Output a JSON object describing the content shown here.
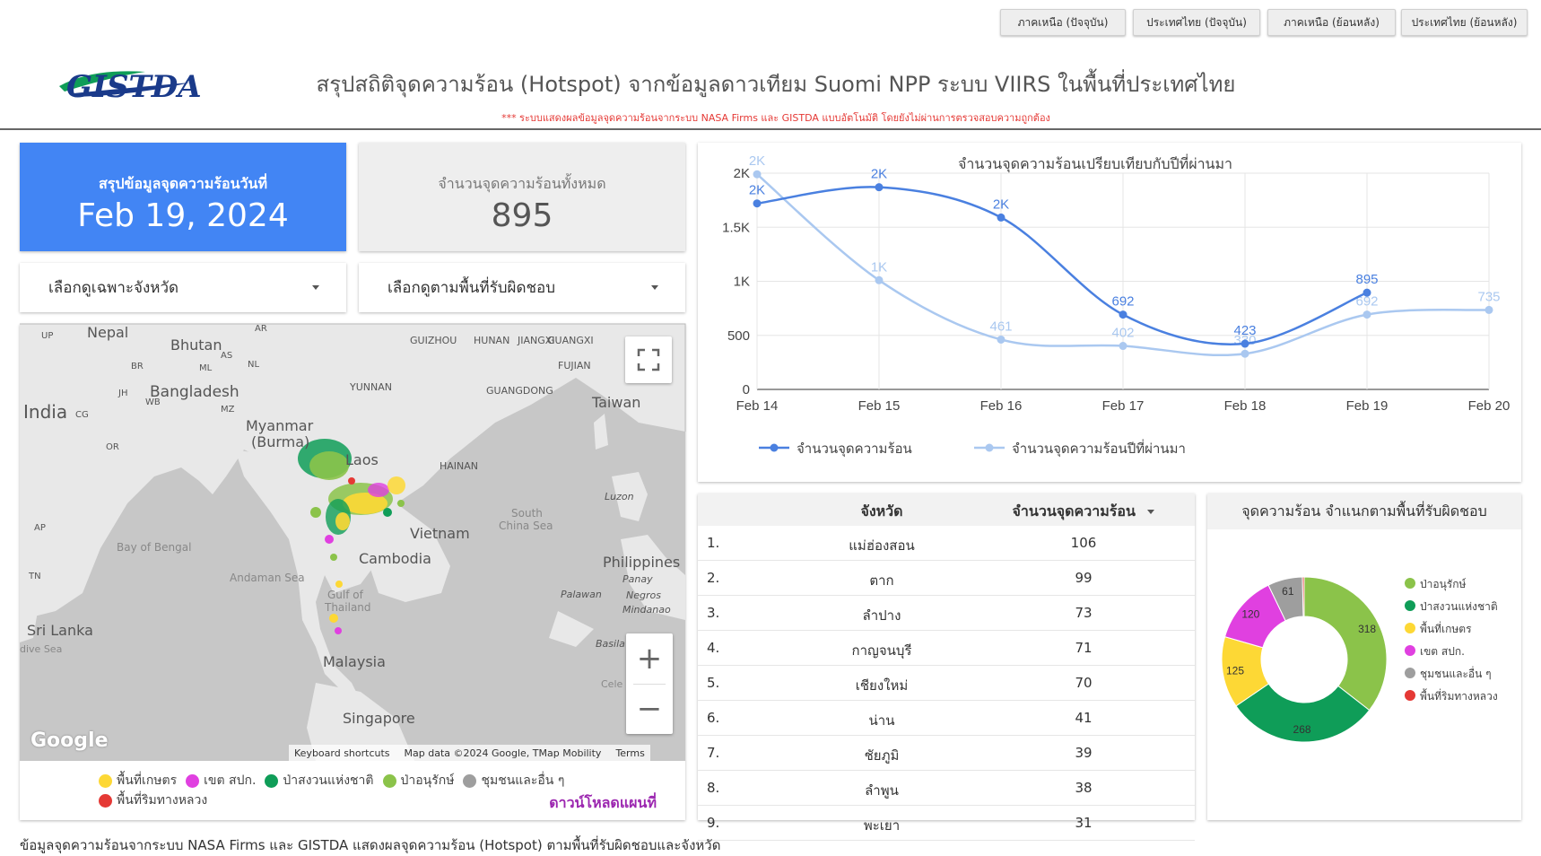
{
  "nav": {
    "buttons": [
      "ภาคเหนือ (ปัจจุบัน)",
      "ประเทศไทย (ปัจจุบัน)",
      "ภาคเหนือ (ย้อนหลัง)",
      "ประเทศไทย (ย้อนหลัง)"
    ]
  },
  "header": {
    "logo": "GISTDA",
    "title": "สรุปสถิติจุดความร้อน (Hotspot) จากข้อมูลดาวเทียม Suomi NPP ระบบ VIIRS  ในพื้นที่ประเทศไทย",
    "subtitle": "*** ระบบแสดงผลข้อมูลจุดความร้อนจากระบบ NASA Firms และ GISTDA แบบอัตโนมัติ โดยยังไม่ผ่านการตรวจสอบความถูกต้อง"
  },
  "summary": {
    "date_label": "สรุปข้อมูลจุดความร้อนวันที่",
    "date_value": "Feb 19, 2024",
    "total_label": "จำนวนจุดความร้อนทั้งหมด",
    "total_value": "895"
  },
  "filters": {
    "province": "เลือกดูเฉพาะจังหวัด",
    "area": "เลือกดูตามพื้นที่รับผิดชอบ"
  },
  "map": {
    "labels": [
      "Nepal",
      "Bhutan",
      "Bangladesh",
      "India",
      "Myanmar",
      "(Burma)",
      "Laos",
      "Vietnam",
      "Cambodia",
      "Thailand",
      "Gulf of",
      "Malaysia",
      "Singapore",
      "Sri Lanka",
      "Taiwan",
      "Philippines",
      "South",
      "China Sea",
      "Bay of Bengal",
      "Andaman Sea",
      "YUNNAN",
      "GUANGXI",
      "GUANGDONG",
      "GUIZHOU",
      "HUNAN",
      "JIANGXI",
      "FUJIAN",
      "HAINAN",
      "Luzon",
      "Panay",
      "Negros",
      "Mindanao",
      "Palawan",
      "Basila",
      "Cele",
      "UP",
      "BR",
      "JH",
      "WB",
      "CG",
      "OR",
      "AP",
      "TN",
      "ML",
      "AS",
      "NL",
      "MZ",
      "AR",
      "dive Sea"
    ],
    "google": "Google",
    "attribution": [
      "Keyboard shortcuts",
      "Map data ©2024 Google, TMap Mobility",
      "Terms"
    ],
    "zoom_in": "+",
    "zoom_out": "−",
    "legend": [
      {
        "label": "พื้นที่เกษตร",
        "color": "#fdd835"
      },
      {
        "label": "เขต สปก.",
        "color": "#e040e0"
      },
      {
        "label": "ป่าสงวนแห่งชาติ",
        "color": "#0f9d58"
      },
      {
        "label": "ป่าอนุรักษ์",
        "color": "#8bc34a"
      },
      {
        "label": "ชุมชนและอื่น ๆ",
        "color": "#9e9e9e"
      },
      {
        "label": "พื้นที่ริมทางหลวง",
        "color": "#e53935"
      }
    ],
    "download": "ดาวน์โหลดแผนที่"
  },
  "chart_data": [
    {
      "type": "line",
      "title": "จำนวนจุดความร้อนเปรียบเทียบกับปีที่ผ่านมา",
      "categories": [
        "Feb 14",
        "Feb 15",
        "Feb 16",
        "Feb 17",
        "Feb 18",
        "Feb 19",
        "Feb 20"
      ],
      "yticks": [
        "0",
        "500",
        "1K",
        "1.5K",
        "2K"
      ],
      "ylim": [
        0,
        2000
      ],
      "grid": true,
      "legend_position": "bottom-left",
      "series": [
        {
          "name": "จำนวนจุดความร้อน",
          "color": "#4a80e0",
          "values": [
            1720,
            1870,
            1590,
            692,
            423,
            895,
            null
          ],
          "labels": [
            "2K",
            "2K",
            "2K",
            "692",
            "423",
            "895",
            ""
          ]
        },
        {
          "name": "จำนวนจุดความร้อนปีที่ผ่านมา",
          "color": "#aac8f0",
          "values": [
            1990,
            1010,
            461,
            402,
            330,
            692,
            735
          ],
          "labels": [
            "2K",
            "1K",
            "461",
            "402",
            "330",
            "692",
            "735"
          ]
        }
      ]
    },
    {
      "type": "table",
      "columns": [
        "จังหวัด",
        "จำนวนจุดความร้อน"
      ],
      "rows": [
        [
          "1.",
          "แม่ฮ่องสอน",
          "106"
        ],
        [
          "2.",
          "ตาก",
          "99"
        ],
        [
          "3.",
          "ลำปาง",
          "73"
        ],
        [
          "4.",
          "กาญจนบุรี",
          "71"
        ],
        [
          "5.",
          "เชียงใหม่",
          "70"
        ],
        [
          "6.",
          "น่าน",
          "41"
        ],
        [
          "7.",
          "ชัยภูมิ",
          "39"
        ],
        [
          "8.",
          "ลำพูน",
          "38"
        ],
        [
          "9.",
          "พะเยา",
          "31"
        ]
      ]
    },
    {
      "type": "pie",
      "title": "จุดความร้อน จำแนกตามพื้นที่รับผิดชอบ",
      "slices": [
        {
          "label": "ป่าอนุรักษ์",
          "value": 318,
          "color": "#8bc34a"
        },
        {
          "label": "ป่าสงวนแห่งชาติ",
          "value": 268,
          "color": "#0f9d58"
        },
        {
          "label": "พื้นที่เกษตร",
          "value": 125,
          "color": "#fdd835"
        },
        {
          "label": "เขต สปก.",
          "value": 120,
          "color": "#e040e0"
        },
        {
          "label": "ชุมชนและอื่น ๆ",
          "value": 61,
          "color": "#9e9e9e"
        },
        {
          "label": "พื้นที่ริมทางหลวง",
          "value": 3,
          "color": "#e53935"
        }
      ]
    }
  ],
  "footer": "ข้อมูลจุดความร้อนจากระบบ NASA Firms และ GISTDA แสดงผลจุดความร้อน (Hotspot) ตามพื้นที่รับผิดชอบและจังหวัด"
}
